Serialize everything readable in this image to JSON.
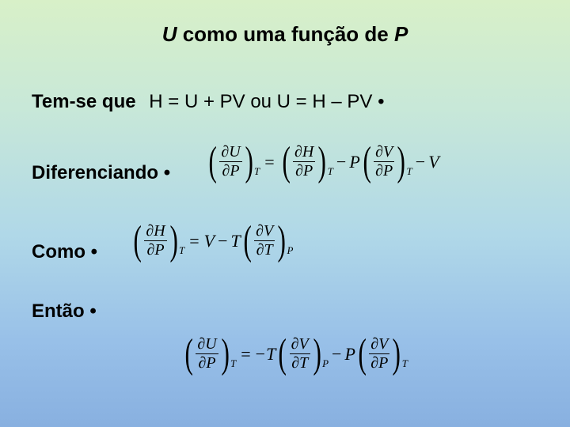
{
  "title": {
    "pre": "U",
    "mid": " como uma função de ",
    "post": "P"
  },
  "lines": {
    "temse_label": "Tem-se que",
    "temse_eq": "H = U + PV   ou    U = H – PV  •",
    "diferenciando": "Diferenciando  •",
    "como": "Como  •",
    "entao": "Então  •"
  },
  "styling": {
    "title_fontsize": 26,
    "body_fontsize": 24,
    "math_fontsize": 22,
    "sub_fontsize": 13,
    "bg_gradient": [
      "#d8f0c8",
      "#c8e8d8",
      "#b0d8e8",
      "#98c0e8",
      "#88b0e0"
    ],
    "text_color": "#000000",
    "font_family_body": "Arial",
    "font_family_math": "Times New Roman"
  },
  "eq_diff": {
    "terms": [
      {
        "type": "deriv",
        "num_var": "U",
        "den_var": "P",
        "sub": "T"
      },
      {
        "type": "op",
        "text": "="
      },
      {
        "type": "deriv",
        "num_var": "H",
        "den_var": "P",
        "sub": "T"
      },
      {
        "type": "minus"
      },
      {
        "type": "coeff",
        "text": "P"
      },
      {
        "type": "deriv",
        "num_var": "V",
        "den_var": "P",
        "sub": "T"
      },
      {
        "type": "minus"
      },
      {
        "type": "coeff",
        "text": "V"
      }
    ]
  },
  "eq_como": {
    "terms": [
      {
        "type": "deriv",
        "num_var": "H",
        "den_var": "P",
        "sub": "T"
      },
      {
        "type": "op",
        "text": "="
      },
      {
        "type": "coeff",
        "text": "V"
      },
      {
        "type": "minus"
      },
      {
        "type": "coeff",
        "text": "T"
      },
      {
        "type": "deriv",
        "num_var": "V",
        "den_var": "T",
        "sub": "P"
      }
    ]
  },
  "eq_final": {
    "terms": [
      {
        "type": "deriv",
        "num_var": "U",
        "den_var": "P",
        "sub": "T"
      },
      {
        "type": "op",
        "text": "="
      },
      {
        "type": "minus_tight"
      },
      {
        "type": "coeff",
        "text": "T"
      },
      {
        "type": "deriv",
        "num_var": "V",
        "den_var": "T",
        "sub": "P"
      },
      {
        "type": "minus"
      },
      {
        "type": "coeff",
        "text": "P"
      },
      {
        "type": "deriv",
        "num_var": "V",
        "den_var": "P",
        "sub": "T"
      }
    ]
  }
}
